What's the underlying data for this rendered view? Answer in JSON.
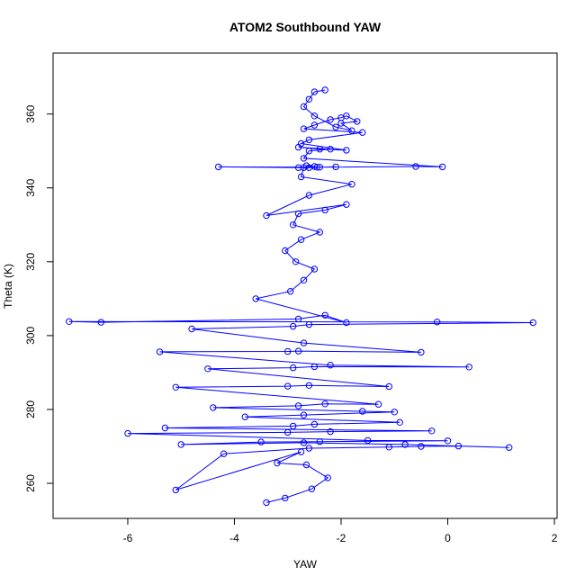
{
  "chart_data": {
    "type": "line",
    "title": "ATOM2 Southbound YAW",
    "xlabel": "YAW",
    "ylabel": "Theta (K)",
    "xlim": [
      -7.4,
      2.05
    ],
    "ylim": [
      250.5,
      376.5
    ],
    "x_ticks": [
      -6,
      -4,
      -2,
      0,
      2
    ],
    "y_ticks": [
      260,
      280,
      300,
      320,
      340,
      360
    ],
    "grid": false,
    "legend": "none",
    "colors": {
      "series": "#0000ff",
      "frame": "#000000"
    },
    "marker": "open-circle",
    "series": [
      {
        "x": [
          -3.4,
          -3.05,
          -2.55,
          -2.25,
          -2.65,
          -3.2,
          -2.75,
          -5.1,
          -4.2,
          -2.6,
          -1.1,
          -0.5,
          0.2,
          1.15,
          -0.8,
          -2.7,
          -5.0,
          -3.5,
          -2.4,
          0.0,
          -1.5,
          -6.0,
          -3.0,
          -2.2,
          -0.3,
          -5.3,
          -2.9,
          -2.5,
          -0.9,
          -3.8,
          -2.7,
          -1.0,
          -1.6,
          -4.4,
          -2.8,
          -2.3,
          -1.3,
          -5.1,
          -3.0,
          -2.6,
          -1.1,
          -4.5,
          -2.9,
          -2.5,
          0.4,
          -2.2,
          -5.4,
          -3.0,
          -2.8,
          -0.5,
          -2.7,
          -4.8,
          -2.9,
          -2.6,
          1.6,
          -0.2,
          -7.1,
          -6.5,
          -2.8,
          -2.3,
          -1.9,
          -3.6,
          -2.95,
          -2.7,
          -2.5,
          -2.85,
          -3.05,
          -2.75,
          -2.4,
          -2.9,
          -2.8,
          -2.3,
          -1.9,
          -3.4,
          -2.6,
          -1.8,
          -2.75,
          -2.7,
          -2.1,
          -2.6,
          -2.5,
          -2.65,
          -2.45,
          -4.3,
          -2.8,
          -2.4,
          -0.6,
          -0.1,
          -2.7,
          -2.6,
          -2.2,
          -2.8,
          -2.4,
          -1.9,
          -2.75,
          -2.6,
          -1.6,
          -2.7,
          -2.5,
          -2.2,
          -2.0,
          -1.9,
          -1.7,
          -2.0,
          -1.8,
          -2.1,
          -2.5,
          -2.7,
          -2.6,
          -2.5,
          -2.3
        ],
        "y": [
          254.8,
          256.0,
          258.5,
          261.5,
          265.0,
          265.5,
          268.5,
          258.2,
          268.0,
          269.5,
          269.8,
          270.0,
          270.1,
          269.7,
          270.5,
          271.0,
          270.5,
          271.2,
          271.3,
          271.5,
          271.6,
          273.5,
          273.8,
          274.0,
          274.2,
          275.0,
          275.5,
          276.0,
          276.5,
          278.0,
          278.5,
          279.3,
          279.5,
          280.5,
          281.0,
          281.5,
          281.4,
          286.0,
          286.3,
          286.5,
          286.2,
          291.0,
          291.3,
          291.6,
          291.5,
          292.0,
          295.6,
          295.7,
          295.8,
          295.5,
          298.0,
          301.8,
          302.5,
          303.0,
          303.5,
          303.7,
          303.8,
          303.6,
          304.5,
          305.5,
          303.5,
          310.0,
          312.0,
          315.0,
          318.0,
          320.0,
          323.0,
          326.0,
          328.0,
          330.0,
          333.0,
          334.0,
          335.5,
          332.5,
          338.0,
          341.0,
          343.0,
          345.5,
          345.7,
          345.5,
          345.8,
          346.0,
          345.6,
          345.7,
          345.5,
          345.6,
          345.8,
          345.7,
          348.0,
          350.0,
          350.5,
          351.0,
          350.5,
          350.2,
          352.0,
          353.0,
          355.0,
          356.0,
          357.0,
          358.5,
          359.0,
          359.5,
          358.0,
          357.5,
          355.5,
          356.5,
          359.5,
          362.0,
          364.0,
          366.0,
          366.5
        ]
      }
    ]
  }
}
